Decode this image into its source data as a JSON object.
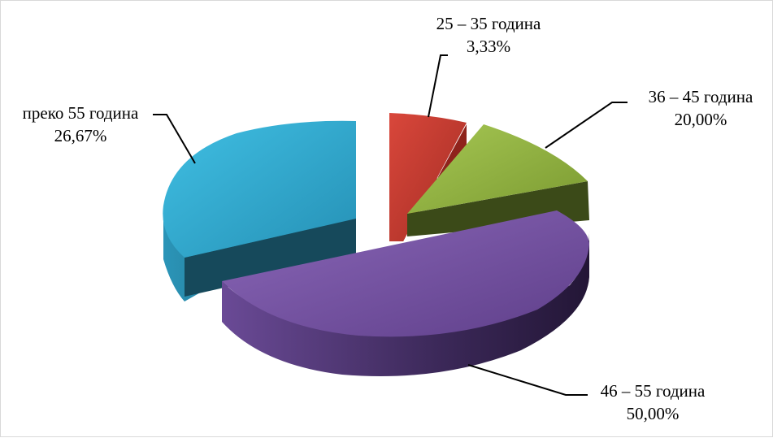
{
  "chart_data": {
    "type": "pie",
    "style": "3d-exploded",
    "title": "",
    "slices": [
      {
        "label": "25 – 35 година",
        "value": 3.33,
        "display": "3,33%",
        "color": "#c0392f",
        "dark": "#7e1f1a"
      },
      {
        "label": "36 – 45 година",
        "value": 20.0,
        "display": "20,00%",
        "color": "#8fb03e",
        "dark": "#3d4a18"
      },
      {
        "label": "46 – 55 година",
        "value": 50.0,
        "display": "50,00%",
        "color": "#7a55a6",
        "dark": "#2e1f45"
      },
      {
        "label": "преко 55 година",
        "value": 26.67,
        "display": "26,67%",
        "color": "#2ea9cf",
        "dark": "#12404f"
      }
    ]
  }
}
